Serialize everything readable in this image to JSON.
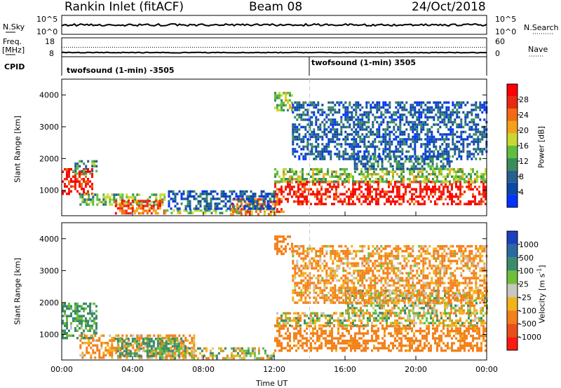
{
  "header": {
    "site": "Rankin Inlet (fitACF)",
    "beam": "Beam 08",
    "date": "24/Oct/2018"
  },
  "strips": {
    "nsky_label": "N.Sky",
    "freq_label_1": "Freq.",
    "freq_label_2": "[MHz]",
    "cpid_label": "CPID",
    "nsearch_label": "N.Search",
    "nave_label": "Nave",
    "count_ticks_left": [
      "10^5",
      "10^0"
    ],
    "count_ticks_right": [
      "10^5",
      "10^0"
    ],
    "freq_ticks_left": [
      "18",
      "8"
    ],
    "nave_ticks_right": [
      "60",
      "0"
    ],
    "cpid_segments": [
      "twofsound (1-min) -3505",
      "twofsound (1-min) 3505"
    ]
  },
  "chart_data": [
    {
      "type": "heatmap",
      "panel": "power",
      "ylabel": "Slant Range [km]",
      "y_ticks": [
        "1000",
        "2000",
        "3000",
        "4000"
      ],
      "ylim": [
        200,
        4500
      ],
      "xlim_hours": [
        0,
        24
      ],
      "colorbar_label": "Power [dB]",
      "colorbar_ticks": [
        "4",
        "8",
        "12",
        "16",
        "20",
        "24",
        "28"
      ],
      "colors": [
        "#0033ff",
        "#0a49a6",
        "#26608e",
        "#3a8c5a",
        "#5fbf3c",
        "#c8d830",
        "#f3a21a",
        "#f26a12",
        "#e82a10",
        "#ff0000"
      ],
      "regions": [
        {
          "t0": 0.0,
          "t1": 1.7,
          "r0": 900,
          "r1": 1700,
          "v": 27
        },
        {
          "t0": 0.6,
          "t1": 2.0,
          "r0": 1550,
          "r1": 1950,
          "v": 11
        },
        {
          "t0": 1.0,
          "t1": 5.8,
          "r0": 550,
          "r1": 900,
          "v": 13
        },
        {
          "t0": 3.0,
          "t1": 5.8,
          "r0": 300,
          "r1": 700,
          "v": 24
        },
        {
          "t0": 5.8,
          "t1": 10.5,
          "r0": 250,
          "r1": 400,
          "v": 14
        },
        {
          "t0": 9.5,
          "t1": 12.5,
          "r0": 250,
          "r1": 750,
          "v": 22
        },
        {
          "t0": 12.0,
          "t1": 24.0,
          "r0": 550,
          "r1": 1300,
          "v": 27
        },
        {
          "t0": 12.0,
          "t1": 24.0,
          "r0": 1300,
          "r1": 1700,
          "v": 14
        },
        {
          "t0": 16.5,
          "t1": 22.0,
          "r0": 1700,
          "r1": 2100,
          "v": 9
        },
        {
          "t0": 12.0,
          "t1": 13.0,
          "r0": 3500,
          "r1": 4100,
          "v": 15
        },
        {
          "t0": 13.0,
          "t1": 24.0,
          "r0": 2000,
          "r1": 3800,
          "v": 6
        },
        {
          "t0": 6.0,
          "t1": 12.0,
          "r0": 400,
          "r1": 1000,
          "v": 6
        }
      ]
    },
    {
      "type": "heatmap",
      "panel": "velocity",
      "ylabel": "Slant Range [km]",
      "y_ticks": [
        "1000",
        "2000",
        "3000",
        "4000"
      ],
      "ylim": [
        200,
        4500
      ],
      "xlim_hours": [
        0,
        24
      ],
      "x_ticks": [
        "00:00",
        "04:00",
        "08:00",
        "12:00",
        "16:00",
        "20:00",
        "00:00"
      ],
      "xlabel": "Time UT",
      "colorbar_label": "Velocity [m s",
      "colorbar_unit_sup": "-1",
      "colorbar_unit_close": "]",
      "colorbar_ticks": [
        "1000",
        "500",
        "100",
        "25",
        "-25",
        "-100",
        "-500",
        "-1000"
      ],
      "colors": [
        "#1c3fbf",
        "#2a6aa0",
        "#3b8c6a",
        "#6fbf3a",
        "#c7c7c0",
        "#f2b21a",
        "#f3801a",
        "#e8501a",
        "#ff1a10"
      ],
      "regions": [
        {
          "t0": 0.0,
          "t1": 2.0,
          "r0": 900,
          "r1": 2000,
          "v": 100
        },
        {
          "t0": 1.0,
          "t1": 7.5,
          "r0": 300,
          "r1": 1000,
          "v": -100
        },
        {
          "t0": 3.0,
          "t1": 7.0,
          "r0": 300,
          "r1": 900,
          "v": 100
        },
        {
          "t0": 5.5,
          "t1": 12.0,
          "r0": 250,
          "r1": 600,
          "v": 0
        },
        {
          "t0": 12.0,
          "t1": 24.0,
          "r0": 1300,
          "r1": 1700,
          "v": 0
        },
        {
          "t0": 16.0,
          "t1": 24.0,
          "r0": 1700,
          "r1": 2400,
          "v": 0
        },
        {
          "t0": 12.0,
          "t1": 24.0,
          "r0": 500,
          "r1": 1300,
          "v": -150
        },
        {
          "t0": 12.0,
          "t1": 13.0,
          "r0": 3500,
          "r1": 4100,
          "v": -200
        },
        {
          "t0": 13.0,
          "t1": 24.0,
          "r0": 2000,
          "r1": 3800,
          "v": -80
        }
      ]
    }
  ],
  "time_series": {
    "nsky_level": 0.5,
    "freq_level": 0.22,
    "nave_level": 0.35
  }
}
